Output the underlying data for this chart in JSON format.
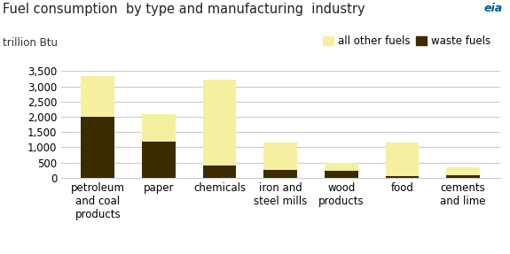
{
  "title": "Fuel consumption  by type and manufacturing  industry",
  "ylabel": "trillion Btu",
  "categories": [
    "petroleum\nand coal\nproducts",
    "paper",
    "chemicals",
    "iron and\nsteel mills",
    "wood\nproducts",
    "food",
    "cements\nand lime"
  ],
  "waste_fuels": [
    2000,
    1200,
    390,
    270,
    215,
    65,
    75
  ],
  "other_fuels": [
    1330,
    900,
    2830,
    880,
    265,
    1080,
    265
  ],
  "waste_color": "#3d2b00",
  "other_color": "#f5f0a0",
  "ylim": [
    0,
    3500
  ],
  "yticks": [
    0,
    500,
    1000,
    1500,
    2000,
    2500,
    3000,
    3500
  ],
  "legend_labels": [
    "all other fuels",
    "waste fuels"
  ],
  "bar_width": 0.55,
  "bg_color": "#ffffff",
  "grid_color": "#cccccc",
  "title_fontsize": 10.5,
  "label_fontsize": 8.5,
  "tick_fontsize": 8.5,
  "eia_logo_color": "#005b8e"
}
